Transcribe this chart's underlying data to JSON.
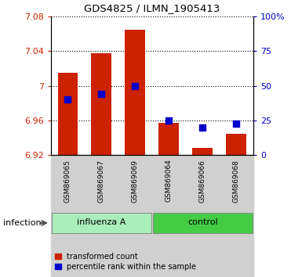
{
  "title": "GDS4825 / ILMN_1905413",
  "samples": [
    "GSM869065",
    "GSM869067",
    "GSM869069",
    "GSM869064",
    "GSM869066",
    "GSM869068"
  ],
  "groups": [
    "influenza A",
    "influenza A",
    "influenza A",
    "control",
    "control",
    "control"
  ],
  "transformed_count": [
    7.015,
    7.038,
    7.065,
    6.957,
    6.928,
    6.945
  ],
  "percentile_rank": [
    40,
    44,
    50,
    25,
    20,
    23
  ],
  "ylim_left": [
    6.92,
    7.08
  ],
  "ylim_right": [
    0,
    100
  ],
  "yticks_left": [
    6.92,
    6.96,
    7.0,
    7.04,
    7.08
  ],
  "yticks_left_labels": [
    "6.92",
    "6.96",
    "7",
    "7.04",
    "7.08"
  ],
  "yticks_right": [
    0,
    25,
    50,
    75,
    100
  ],
  "yticks_right_labels": [
    "0",
    "25",
    "50",
    "75",
    "100%"
  ],
  "bar_color": "#cc2200",
  "dot_color": "#0000cc",
  "bar_bottom": 6.92,
  "influenza_color": "#aaeebb",
  "control_color": "#44cc44",
  "legend_label_red": "transformed count",
  "legend_label_blue": "percentile rank within the sample",
  "xlabel_group": "infection",
  "tick_label_color_left": "#cc2200",
  "tick_label_color_right": "#0000cc"
}
